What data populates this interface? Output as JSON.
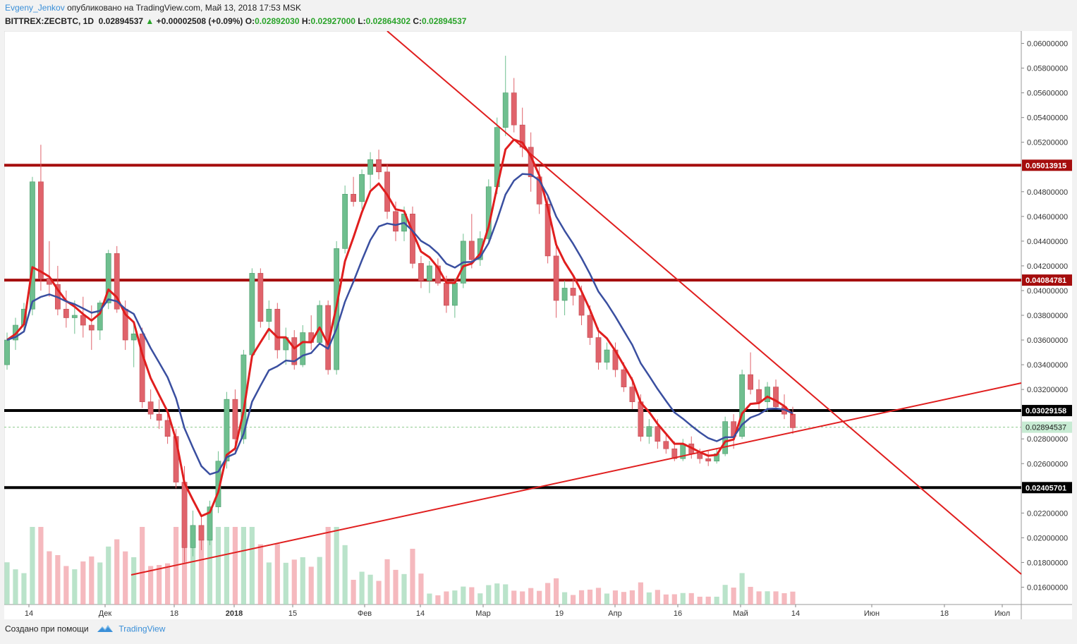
{
  "header": {
    "author": "Evgeny_Jenkov",
    "published_text": "опубликовано на TradingView.com, Май 13, 2018 17:53 MSK",
    "symbol": "BITTREX:ZECBTC, 1D",
    "last_price": "0.02894537",
    "change_arrow": "▲",
    "change": "+0.00002508 (+0.09%)",
    "open_label": "O:",
    "open": "0.02892030",
    "high_label": "H:",
    "high": "0.02927000",
    "low_label": "L:",
    "low": "0.02864302",
    "close_label": "C:",
    "close": "0.02894537"
  },
  "footer": {
    "created_with": "Создано при помощи",
    "brand": "TradingView"
  },
  "colors": {
    "up_candle": "#6fbf8f",
    "down_candle": "#e0636b",
    "ma_fast": "#e01e1e",
    "ma_slow": "#3a4fa0",
    "resistance": "#a50d0d",
    "support": "#000000",
    "trendline": "#e01e1e",
    "last_price_line": "#8cc98c"
  },
  "chart_data": {
    "type": "candlestick",
    "price_axis": {
      "min": 0.0146,
      "max": 0.061,
      "ticks": [
        "0.06000000",
        "0.05800000",
        "0.05600000",
        "0.05400000",
        "0.05200000",
        "0.04800000",
        "0.04600000",
        "0.04400000",
        "0.04200000",
        "0.04000000",
        "0.03800000",
        "0.03600000",
        "0.03400000",
        "0.03200000",
        "0.02800000",
        "0.02600000",
        "0.02200000",
        "0.02000000",
        "0.01800000",
        "0.01600000"
      ]
    },
    "time_axis": {
      "labels": [
        {
          "text": "14",
          "bold": false
        },
        {
          "text": "Дек",
          "bold": false
        },
        {
          "text": "18",
          "bold": false
        },
        {
          "text": "2018",
          "bold": true
        },
        {
          "text": "15",
          "bold": false
        },
        {
          "text": "Фев",
          "bold": false
        },
        {
          "text": "14",
          "bold": false
        },
        {
          "text": "Мар",
          "bold": false
        },
        {
          "text": "19",
          "bold": false
        },
        {
          "text": "Апр",
          "bold": false
        },
        {
          "text": "16",
          "bold": false
        },
        {
          "text": "Май",
          "bold": false
        },
        {
          "text": "14",
          "bold": false
        },
        {
          "text": "Июн",
          "bold": false
        },
        {
          "text": "18",
          "bold": false
        },
        {
          "text": "Июл",
          "bold": false
        }
      ]
    },
    "horizontal_levels": [
      {
        "price": 0.05013915,
        "label": "0.05013915",
        "kind": "resistance"
      },
      {
        "price": 0.04084781,
        "label": "0.04084781",
        "kind": "resistance"
      },
      {
        "price": 0.03029158,
        "label": "0.03029158",
        "kind": "support"
      },
      {
        "price": 0.02405701,
        "label": "0.02405701",
        "kind": "support"
      }
    ],
    "last_price": {
      "price": 0.02894537,
      "label": "0.02894537"
    },
    "candles_ohlc": [
      [
        0.034,
        0.0366,
        0.0336,
        0.036
      ],
      [
        0.036,
        0.0378,
        0.0352,
        0.0372
      ],
      [
        0.0372,
        0.039,
        0.0366,
        0.0385
      ],
      [
        0.0385,
        0.0492,
        0.038,
        0.0488
      ],
      [
        0.0488,
        0.0518,
        0.04,
        0.041
      ],
      [
        0.041,
        0.044,
        0.0395,
        0.0405
      ],
      [
        0.0405,
        0.042,
        0.038,
        0.0385
      ],
      [
        0.0385,
        0.04,
        0.037,
        0.0378
      ],
      [
        0.0378,
        0.0392,
        0.0365,
        0.038
      ],
      [
        0.038,
        0.0395,
        0.0362,
        0.0372
      ],
      [
        0.0372,
        0.0388,
        0.0352,
        0.0368
      ],
      [
        0.0368,
        0.0392,
        0.036,
        0.039
      ],
      [
        0.039,
        0.0433,
        0.0385,
        0.043
      ],
      [
        0.043,
        0.0436,
        0.0382,
        0.0385
      ],
      [
        0.0385,
        0.0392,
        0.0352,
        0.036
      ],
      [
        0.036,
        0.0372,
        0.0338,
        0.0365
      ],
      [
        0.0365,
        0.037,
        0.0305,
        0.031
      ],
      [
        0.031,
        0.032,
        0.0296,
        0.03
      ],
      [
        0.03,
        0.0312,
        0.0288,
        0.0295
      ],
      [
        0.0295,
        0.03,
        0.0276,
        0.0282
      ],
      [
        0.0282,
        0.0288,
        0.024,
        0.0245
      ],
      [
        0.0245,
        0.0258,
        0.018,
        0.0192
      ],
      [
        0.0192,
        0.0222,
        0.0185,
        0.021
      ],
      [
        0.021,
        0.0218,
        0.019,
        0.0198
      ],
      [
        0.0198,
        0.023,
        0.0194,
        0.0225
      ],
      [
        0.0225,
        0.027,
        0.022,
        0.0262
      ],
      [
        0.0262,
        0.0318,
        0.0256,
        0.0312
      ],
      [
        0.0312,
        0.032,
        0.027,
        0.028
      ],
      [
        0.028,
        0.0352,
        0.0276,
        0.0348
      ],
      [
        0.0348,
        0.0418,
        0.0345,
        0.0414
      ],
      [
        0.0414,
        0.0418,
        0.037,
        0.0375
      ],
      [
        0.0375,
        0.0392,
        0.036,
        0.0385
      ],
      [
        0.0385,
        0.039,
        0.0345,
        0.0352
      ],
      [
        0.0352,
        0.037,
        0.034,
        0.0362
      ],
      [
        0.0362,
        0.0368,
        0.0336,
        0.034
      ],
      [
        0.034,
        0.0372,
        0.0338,
        0.0366
      ],
      [
        0.0366,
        0.038,
        0.0352,
        0.0358
      ],
      [
        0.0358,
        0.0392,
        0.0356,
        0.0388
      ],
      [
        0.0388,
        0.0392,
        0.0332,
        0.0336
      ],
      [
        0.0336,
        0.044,
        0.0332,
        0.0434
      ],
      [
        0.0434,
        0.0485,
        0.043,
        0.0478
      ],
      [
        0.0478,
        0.0492,
        0.0468,
        0.0472
      ],
      [
        0.0472,
        0.0498,
        0.0466,
        0.0494
      ],
      [
        0.0494,
        0.0512,
        0.0482,
        0.0506
      ],
      [
        0.0506,
        0.0514,
        0.049,
        0.0496
      ],
      [
        0.0496,
        0.0502,
        0.0458,
        0.0464
      ],
      [
        0.0464,
        0.0472,
        0.044,
        0.0448
      ],
      [
        0.0448,
        0.0468,
        0.044,
        0.0462
      ],
      [
        0.0462,
        0.0468,
        0.0418,
        0.0422
      ],
      [
        0.0422,
        0.0428,
        0.0402,
        0.0408
      ],
      [
        0.0408,
        0.0424,
        0.0398,
        0.042
      ],
      [
        0.042,
        0.0426,
        0.0404,
        0.0406
      ],
      [
        0.0406,
        0.0412,
        0.0382,
        0.0388
      ],
      [
        0.0388,
        0.041,
        0.0378,
        0.0406
      ],
      [
        0.0406,
        0.0446,
        0.0402,
        0.044
      ],
      [
        0.044,
        0.0462,
        0.0418,
        0.0425
      ],
      [
        0.0425,
        0.0448,
        0.042,
        0.0442
      ],
      [
        0.0442,
        0.049,
        0.0438,
        0.0484
      ],
      [
        0.0484,
        0.054,
        0.0478,
        0.0532
      ],
      [
        0.0532,
        0.059,
        0.0525,
        0.056
      ],
      [
        0.056,
        0.0572,
        0.0528,
        0.0534
      ],
      [
        0.0534,
        0.0548,
        0.0508,
        0.0516
      ],
      [
        0.0516,
        0.0528,
        0.048,
        0.0492
      ],
      [
        0.0492,
        0.05,
        0.0462,
        0.047
      ],
      [
        0.047,
        0.0478,
        0.0422,
        0.0428
      ],
      [
        0.0428,
        0.044,
        0.0378,
        0.0392
      ],
      [
        0.0392,
        0.0408,
        0.038,
        0.0402
      ],
      [
        0.0402,
        0.041,
        0.0388,
        0.0396
      ],
      [
        0.0396,
        0.0404,
        0.0372,
        0.038
      ],
      [
        0.038,
        0.0388,
        0.0356,
        0.0362
      ],
      [
        0.0362,
        0.037,
        0.0336,
        0.0342
      ],
      [
        0.0342,
        0.0358,
        0.0336,
        0.0352
      ],
      [
        0.0352,
        0.0358,
        0.033,
        0.0336
      ],
      [
        0.0336,
        0.0342,
        0.0318,
        0.0322
      ],
      [
        0.0322,
        0.033,
        0.0304,
        0.031
      ],
      [
        0.031,
        0.0316,
        0.0278,
        0.0282
      ],
      [
        0.0282,
        0.0296,
        0.0276,
        0.029
      ],
      [
        0.029,
        0.0296,
        0.0272,
        0.0278
      ],
      [
        0.0278,
        0.0284,
        0.0268,
        0.0272
      ],
      [
        0.0272,
        0.0278,
        0.0262,
        0.0264
      ],
      [
        0.0264,
        0.028,
        0.0262,
        0.0276
      ],
      [
        0.0276,
        0.0282,
        0.0264,
        0.0268
      ],
      [
        0.0268,
        0.0272,
        0.026,
        0.0264
      ],
      [
        0.0264,
        0.027,
        0.0258,
        0.0262
      ],
      [
        0.0262,
        0.0272,
        0.026,
        0.0268
      ],
      [
        0.0268,
        0.0298,
        0.0266,
        0.0294
      ],
      [
        0.0294,
        0.03,
        0.0272,
        0.0282
      ],
      [
        0.0282,
        0.0336,
        0.028,
        0.0332
      ],
      [
        0.0332,
        0.035,
        0.0316,
        0.032
      ],
      [
        0.032,
        0.0328,
        0.0304,
        0.031
      ],
      [
        0.031,
        0.0326,
        0.0302,
        0.0322
      ],
      [
        0.0322,
        0.0328,
        0.0304,
        0.0306
      ],
      [
        0.0306,
        0.0316,
        0.0296,
        0.03
      ],
      [
        0.03,
        0.0306,
        0.0284,
        0.0289
      ]
    ]
  }
}
